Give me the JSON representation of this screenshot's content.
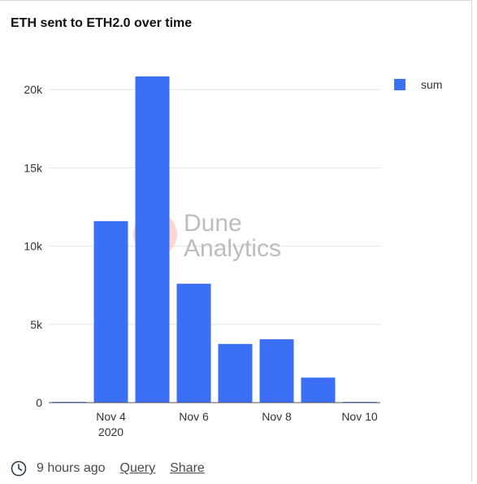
{
  "title": "ETH sent to ETH2.0 over time",
  "accent_color": "#3b6ff5",
  "watermark": {
    "line1": "Dune",
    "line2": "Analytics"
  },
  "footer": {
    "time_icon": "clock-icon",
    "time_text": "9 hours ago",
    "query_link": "Query",
    "share_link": "Share"
  },
  "chart_data": {
    "type": "bar",
    "categories": [
      "Nov 3",
      "Nov 4",
      "Nov 5",
      "Nov 6",
      "Nov 7",
      "Nov 8",
      "Nov 9",
      "Nov 10"
    ],
    "series": [
      {
        "name": "sum",
        "values": [
          50,
          11600,
          20850,
          7600,
          3750,
          4050,
          1600,
          50
        ]
      }
    ],
    "x_ticks": [
      {
        "category": "Nov 4",
        "label": "Nov 4",
        "sublabel": "2020"
      },
      {
        "category": "Nov 6",
        "label": "Nov 6",
        "sublabel": ""
      },
      {
        "category": "Nov 8",
        "label": "Nov 8",
        "sublabel": ""
      },
      {
        "category": "Nov 10",
        "label": "Nov 10",
        "sublabel": ""
      }
    ],
    "y_ticks": [
      0,
      5000,
      10000,
      15000,
      20000
    ],
    "y_tick_labels": [
      "0",
      "5k",
      "10k",
      "15k",
      "20k"
    ],
    "ylim": [
      0,
      21000
    ],
    "grid": true,
    "legend": "top-right"
  }
}
